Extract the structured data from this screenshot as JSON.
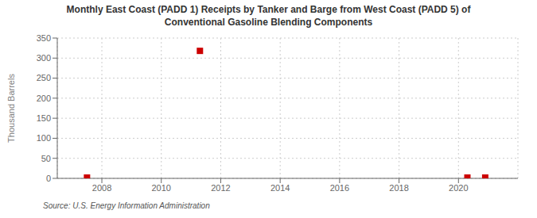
{
  "chart_data": {
    "type": "scatter",
    "title": "Monthly East Coast (PADD 1) Receipts by Tanker and Barge from West Coast (PADD 5) of\nConventional Gasoline Blending Components",
    "ylabel": "Thousand Barrels",
    "annotation": "Source: U.S. Energy Information Administration",
    "x": [
      2007.5,
      2011.3,
      2020.3,
      2020.9
    ],
    "values": [
      2,
      318,
      2,
      2
    ],
    "color": "#cc0000",
    "marker": "square",
    "xlim": [
      2006.5,
      2022.0
    ],
    "ylim": [
      0,
      350
    ],
    "xticks": [
      2008,
      2010,
      2012,
      2014,
      2016,
      2018,
      2020
    ],
    "yticks": [
      0,
      50,
      100,
      150,
      200,
      250,
      300,
      350
    ],
    "grid": true
  }
}
